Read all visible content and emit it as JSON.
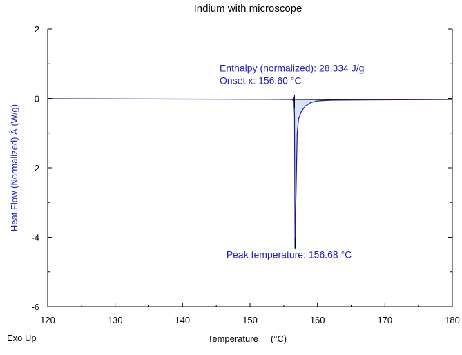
{
  "chart_data": {
    "type": "line",
    "title": "Indium with microscope",
    "xlabel": "Temperature     (°C)",
    "ylabel": "Heat Flow (Normalized)  Â  (W/g)",
    "corner_label": "Exo Up",
    "xlim": [
      120,
      180
    ],
    "ylim": [
      -6,
      2
    ],
    "x_ticks": [
      120,
      130,
      140,
      150,
      160,
      170,
      180
    ],
    "y_ticks": [
      -6,
      -4,
      -2,
      0,
      2
    ],
    "grid": false,
    "colors": {
      "line": "#1a1a8c",
      "fill": "#d6e4f5",
      "annotation": "#2222bb"
    },
    "series": [
      {
        "points": [
          [
            120,
            -0.01
          ],
          [
            125,
            -0.012
          ],
          [
            130,
            -0.015
          ],
          [
            135,
            -0.018
          ],
          [
            140,
            -0.02
          ],
          [
            145,
            -0.022
          ],
          [
            150,
            -0.025
          ],
          [
            154,
            -0.028
          ],
          [
            156.2,
            -0.03
          ],
          [
            156.4,
            -0.06
          ],
          [
            156.5,
            0.05
          ],
          [
            156.6,
            -0.5
          ],
          [
            156.65,
            -3.0
          ],
          [
            156.68,
            -4.3
          ],
          [
            156.72,
            -4.3
          ],
          [
            156.8,
            -3.0
          ],
          [
            157.0,
            -1.0
          ],
          [
            157.2,
            -0.6
          ],
          [
            157.6,
            -0.38
          ],
          [
            158.2,
            -0.22
          ],
          [
            159.0,
            -0.12
          ],
          [
            160.0,
            -0.07
          ],
          [
            162.0,
            -0.05
          ],
          [
            165.0,
            -0.045
          ],
          [
            169.5,
            -0.04
          ],
          [
            175,
            -0.035
          ],
          [
            180,
            -0.03
          ]
        ]
      }
    ],
    "shaded_region": {
      "x_start": 156.4,
      "x_end": 169.5,
      "baseline": [
        -0.03,
        -0.04
      ]
    },
    "annotations": [
      {
        "text": "Enthalpy (normalized): 28.334 J/g",
        "x": 145.5,
        "y": 0.78
      },
      {
        "text": "Onset x: 156.60 °C",
        "x": 145.5,
        "y": 0.42
      },
      {
        "text": "Peak temperature: 156.68 °C",
        "x": 146.5,
        "y": -4.6
      }
    ]
  }
}
